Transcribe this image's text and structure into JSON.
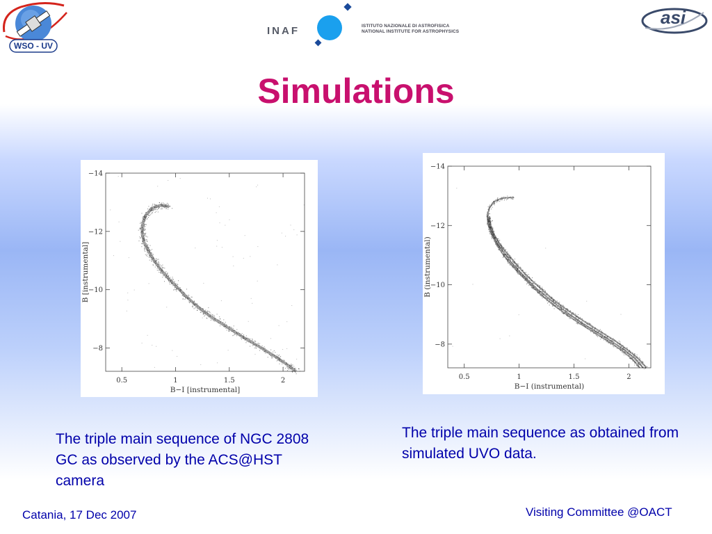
{
  "header": {
    "wso_logo_text": "WSO - UV",
    "inaf_logo_text": "INAF",
    "inaf_line1": "ISTITUTO NAZIONALE DI ASTROFISICA",
    "inaf_line2": "NATIONAL INSTITUTE FOR ASTROPHYSICS",
    "asi_logo_text": "asi"
  },
  "title": "Simulations",
  "chart_data": [
    {
      "type": "scatter",
      "title": "",
      "xlabel": "B−I [instrumental]",
      "ylabel": "B [instrumental]",
      "xlim": [
        0.35,
        2.2
      ],
      "ylim": [
        -7.2,
        -14
      ],
      "grid": false,
      "x_ticks": [
        {
          "value": 0.5,
          "label": "0.5"
        },
        {
          "value": 1,
          "label": "1"
        },
        {
          "value": 1.5,
          "label": "1.5"
        },
        {
          "value": 2,
          "label": "2"
        }
      ],
      "y_ticks": [
        {
          "value": -14,
          "label": "−14"
        },
        {
          "value": -12,
          "label": "−12"
        },
        {
          "value": -10,
          "label": "−10"
        },
        {
          "value": -8,
          "label": "−8"
        }
      ],
      "series": [
        {
          "points": [
            [
              0.94,
              -12.85
            ],
            [
              0.86,
              -12.9
            ],
            [
              0.78,
              -12.8
            ],
            [
              0.72,
              -12.55
            ],
            [
              0.69,
              -12.2
            ],
            [
              0.69,
              -11.9
            ],
            [
              0.71,
              -11.6
            ],
            [
              0.75,
              -11.3
            ],
            [
              0.8,
              -11.0
            ],
            [
              0.86,
              -10.7
            ],
            [
              0.93,
              -10.4
            ],
            [
              1.01,
              -10.1
            ],
            [
              1.09,
              -9.8
            ],
            [
              1.18,
              -9.5
            ],
            [
              1.28,
              -9.2
            ],
            [
              1.4,
              -8.9
            ],
            [
              1.53,
              -8.6
            ],
            [
              1.66,
              -8.3
            ],
            [
              1.8,
              -8.0
            ],
            [
              1.93,
              -7.7
            ],
            [
              2.05,
              -7.4
            ],
            [
              2.12,
              -7.2
            ]
          ]
        }
      ]
    },
    {
      "type": "scatter",
      "title": "",
      "xlabel": "B−I (instrumental)",
      "ylabel": "B (instrumental)",
      "xlim": [
        0.35,
        2.2
      ],
      "ylim": [
        -7.2,
        -14
      ],
      "grid": false,
      "x_ticks": [
        {
          "value": 0.5,
          "label": "0.5"
        },
        {
          "value": 1,
          "label": "1"
        },
        {
          "value": 1.5,
          "label": "1.5"
        },
        {
          "value": 2,
          "label": "2"
        }
      ],
      "y_ticks": [
        {
          "value": -14,
          "label": "−14"
        },
        {
          "value": -12,
          "label": "−12"
        },
        {
          "value": -10,
          "label": "−10"
        },
        {
          "value": -8,
          "label": "−8"
        }
      ],
      "series": [
        {
          "points": [
            [
              0.95,
              -12.95
            ],
            [
              0.84,
              -12.92
            ],
            [
              0.77,
              -12.8
            ],
            [
              0.73,
              -12.6
            ],
            [
              0.71,
              -12.3
            ],
            [
              0.72,
              -12.0
            ],
            [
              0.75,
              -11.7
            ],
            [
              0.79,
              -11.4
            ],
            [
              0.84,
              -11.1
            ],
            [
              0.9,
              -10.8
            ],
            [
              0.97,
              -10.5
            ],
            [
              1.05,
              -10.2
            ],
            [
              1.13,
              -9.9
            ],
            [
              1.22,
              -9.6
            ],
            [
              1.32,
              -9.3
            ],
            [
              1.43,
              -9.0
            ],
            [
              1.55,
              -8.7
            ],
            [
              1.68,
              -8.4
            ],
            [
              1.81,
              -8.1
            ],
            [
              1.93,
              -7.8
            ],
            [
              2.03,
              -7.5
            ],
            [
              2.1,
              -7.2
            ]
          ]
        },
        {
          "points": [
            [
              0.72,
              -12.3
            ],
            [
              0.73,
              -12.0
            ],
            [
              0.76,
              -11.7
            ],
            [
              0.8,
              -11.4
            ],
            [
              0.86,
              -11.1
            ],
            [
              0.92,
              -10.8
            ],
            [
              0.99,
              -10.5
            ],
            [
              1.07,
              -10.2
            ],
            [
              1.15,
              -9.9
            ],
            [
              1.25,
              -9.6
            ],
            [
              1.35,
              -9.3
            ],
            [
              1.46,
              -9.0
            ],
            [
              1.58,
              -8.7
            ],
            [
              1.71,
              -8.4
            ],
            [
              1.84,
              -8.1
            ],
            [
              1.96,
              -7.8
            ],
            [
              2.06,
              -7.5
            ],
            [
              2.13,
              -7.2
            ]
          ]
        },
        {
          "points": [
            [
              0.73,
              -12.3
            ],
            [
              0.74,
              -12.0
            ],
            [
              0.77,
              -11.7
            ],
            [
              0.82,
              -11.4
            ],
            [
              0.88,
              -11.1
            ],
            [
              0.95,
              -10.8
            ],
            [
              1.02,
              -10.5
            ],
            [
              1.1,
              -10.2
            ],
            [
              1.19,
              -9.9
            ],
            [
              1.28,
              -9.6
            ],
            [
              1.38,
              -9.3
            ],
            [
              1.5,
              -9.0
            ],
            [
              1.62,
              -8.7
            ],
            [
              1.75,
              -8.4
            ],
            [
              1.88,
              -8.1
            ],
            [
              1.99,
              -7.8
            ],
            [
              2.09,
              -7.5
            ],
            [
              2.16,
              -7.2
            ]
          ]
        }
      ]
    }
  ],
  "captions": {
    "left": "The triple main sequence of NGC 2808 GC  as observed by the ACS@HST camera",
    "right": "The triple main sequence as obtained from simulated UVO data."
  },
  "footer": {
    "left": "Catania, 17 Dec 2007",
    "right": "Visiting Committee @OACT"
  },
  "colors": {
    "title": "#c8106e",
    "text": "#0000aa",
    "inaf_blue": "#1aa0ee",
    "points": "#222222"
  }
}
